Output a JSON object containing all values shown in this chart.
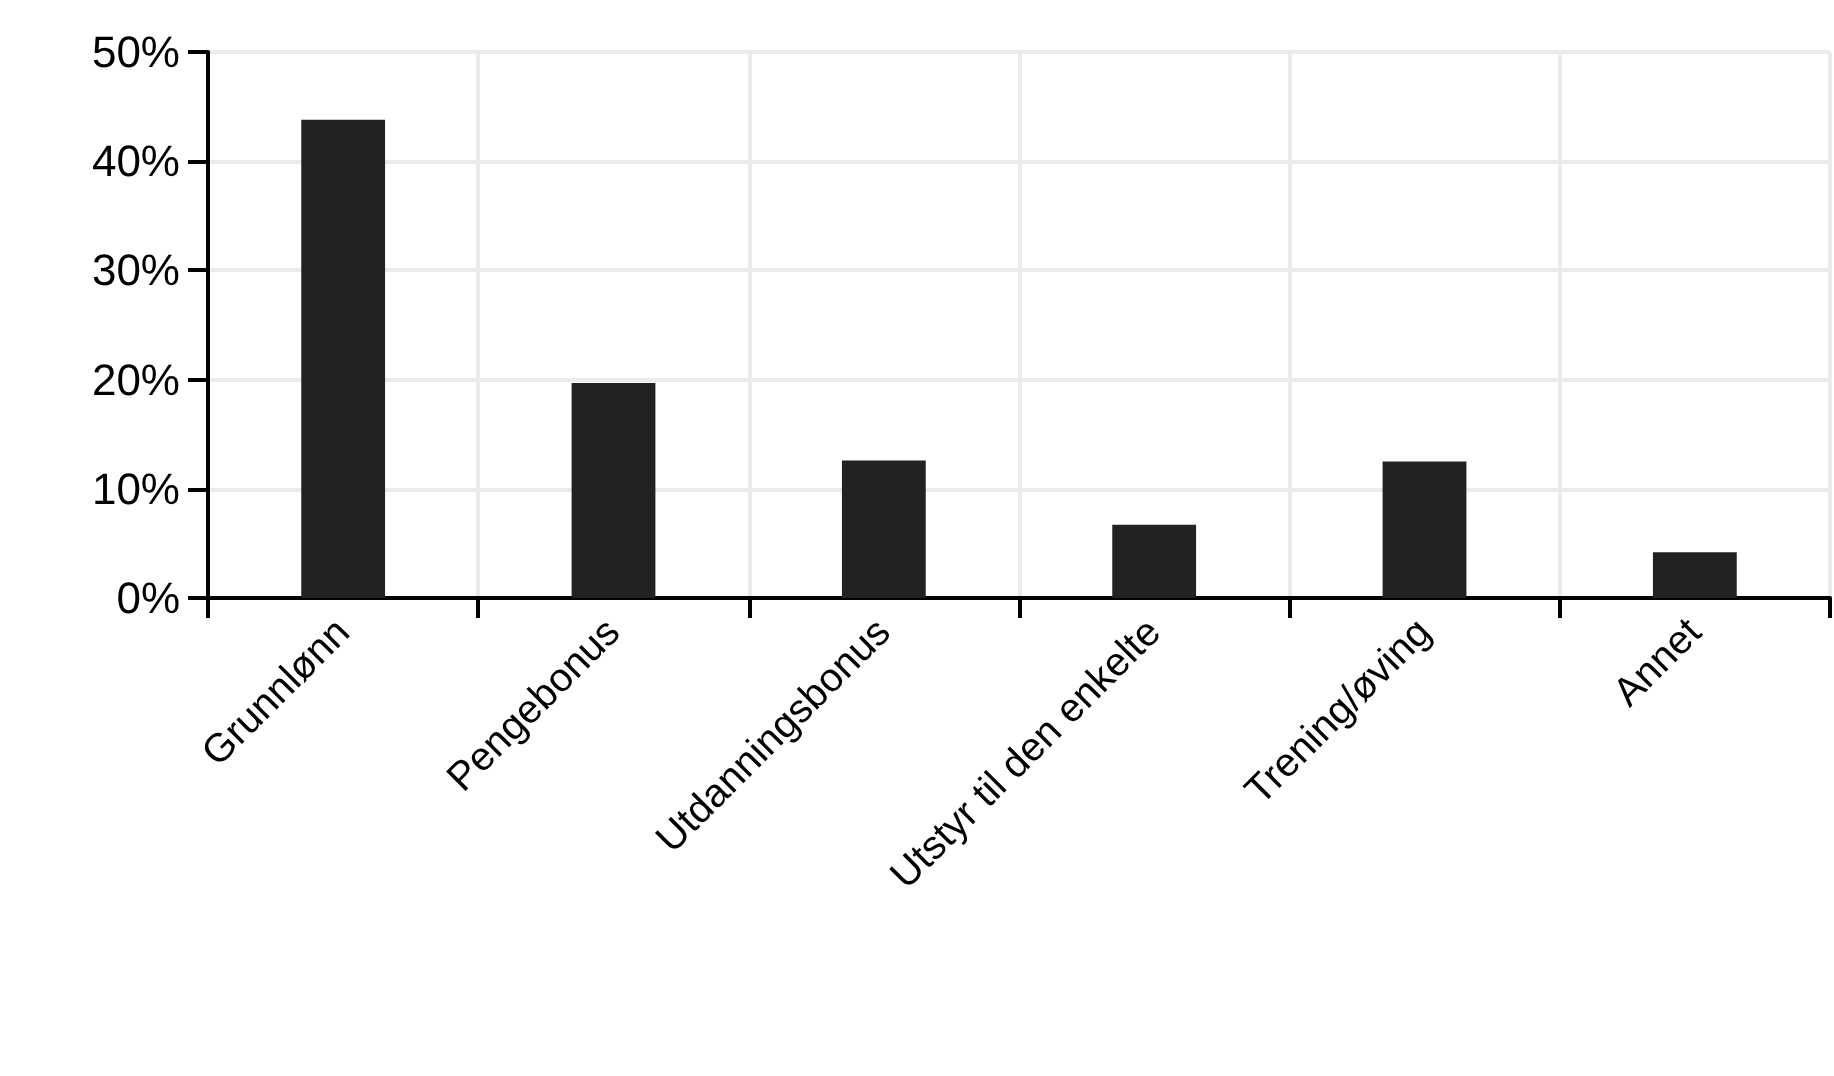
{
  "chart_data": {
    "type": "bar",
    "categories": [
      "Grunnlønn",
      "Pengebonus",
      "Utdanningsbonus",
      "Utstyr til den enkelte",
      "Trening/øving",
      "Annet"
    ],
    "values": [
      43.8,
      19.7,
      12.6,
      6.7,
      12.5,
      4.2
    ],
    "color": "#222222",
    "ylim": [
      0,
      50
    ],
    "yticks": [
      {
        "value": 0,
        "label": "0%"
      },
      {
        "value": 10,
        "label": "10%"
      },
      {
        "value": 20,
        "label": "20%"
      },
      {
        "value": 30,
        "label": "30%"
      },
      {
        "value": 40,
        "label": "40%"
      },
      {
        "value": 50,
        "label": "50%"
      }
    ],
    "grid": true
  }
}
